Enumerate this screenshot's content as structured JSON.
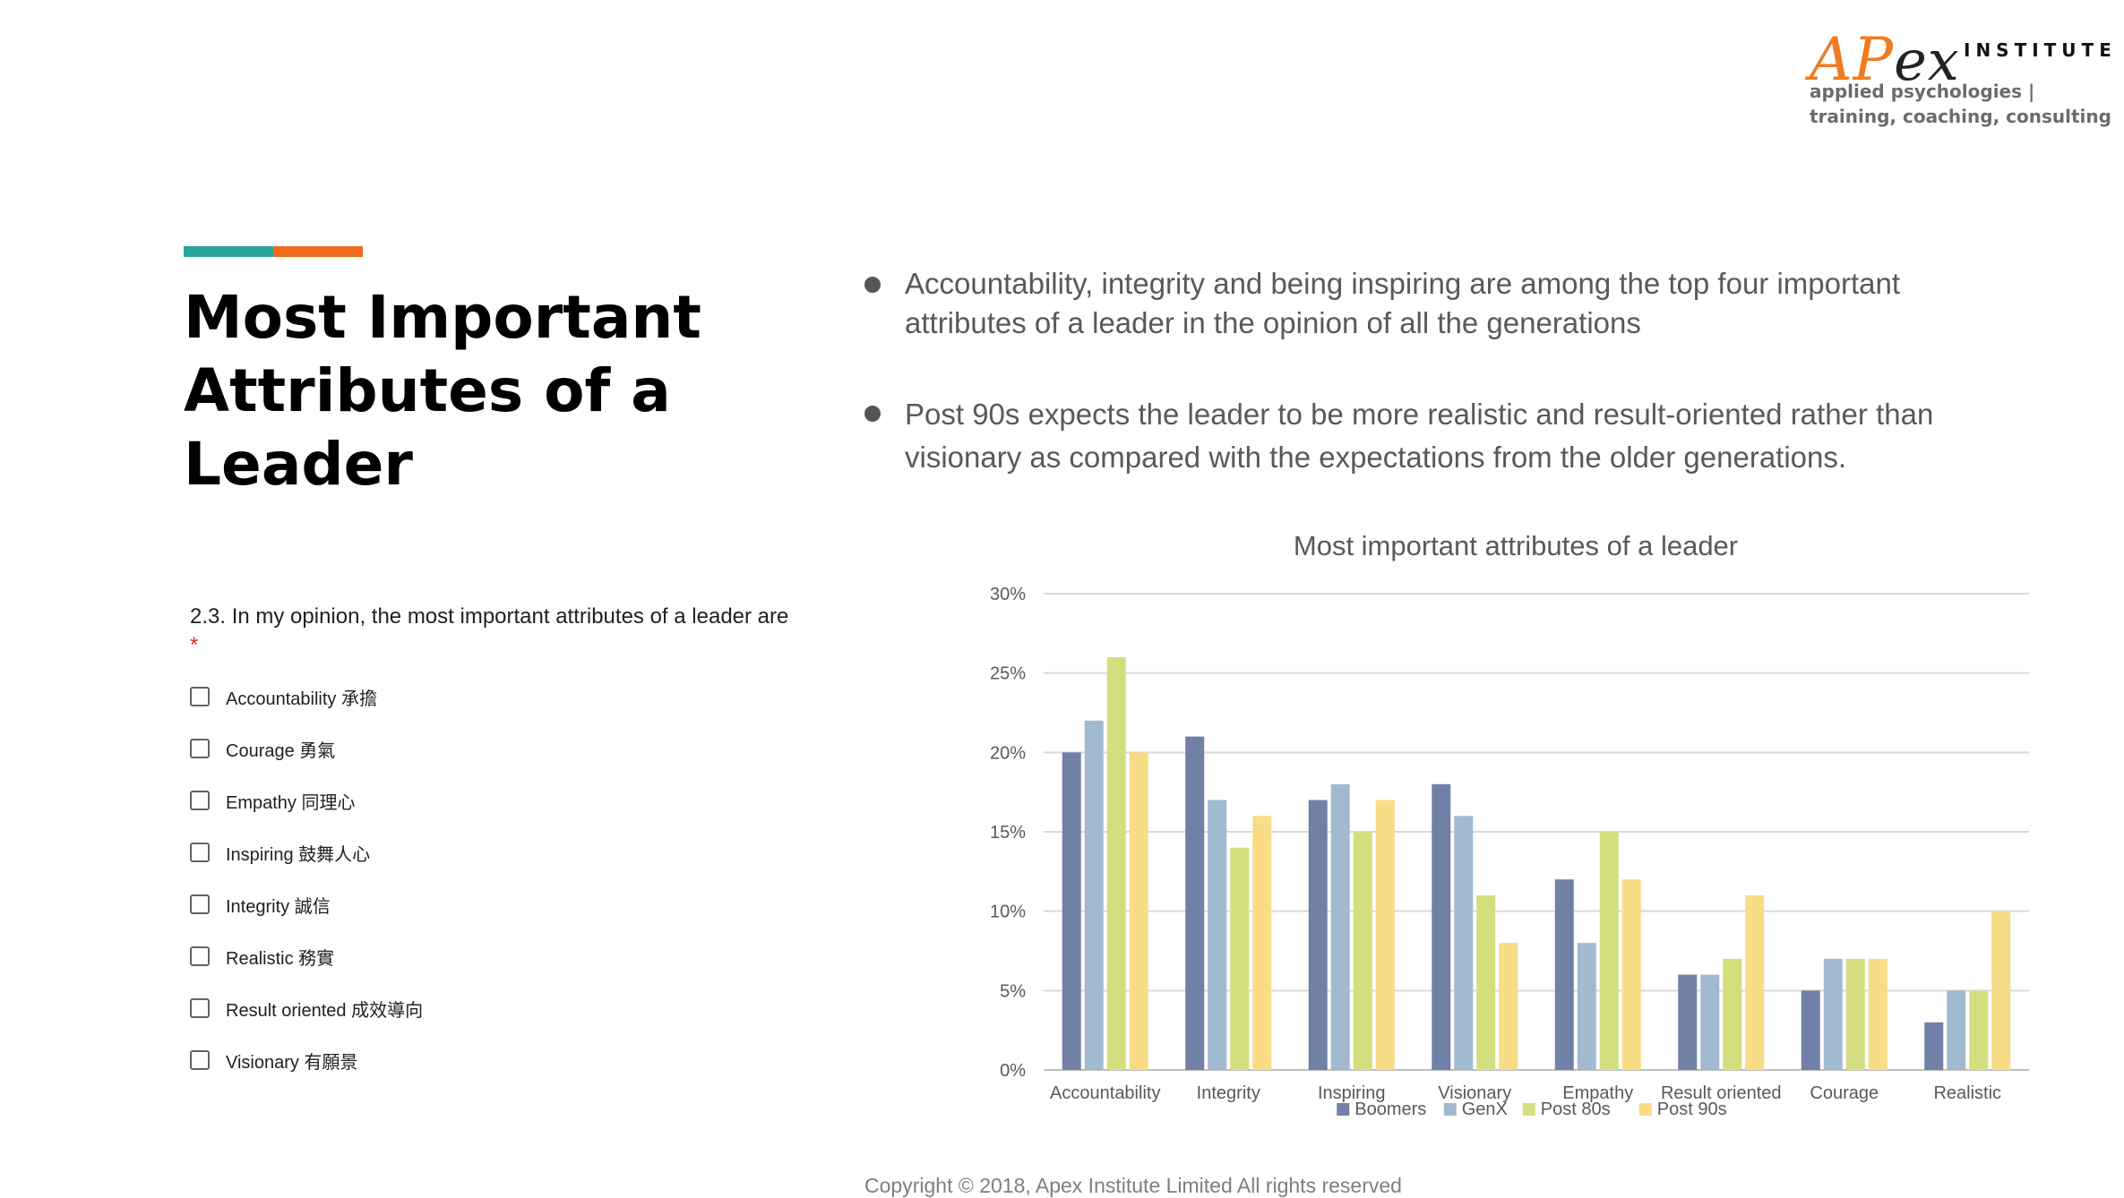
{
  "logo": {
    "mark_main": "AP",
    "mark_sub": "ex",
    "institute": "INSTITUTE",
    "tagline_1": "applied psychologies |",
    "tagline_2": "training, coaching, consulting",
    "accent_color": "#f07b22"
  },
  "title": {
    "text": "Most Important Attributes of a Leader",
    "accent_colors": [
      "#26a69a",
      "#ef6c1e"
    ]
  },
  "form": {
    "question": "2.3. In my opinion, the most important attributes of a leader are",
    "required_mark": "*",
    "options": [
      "Accountability 承擔",
      "Courage 勇氣",
      "Empathy 同理心",
      "Inspiring 鼓舞人心",
      "Integrity 誠信",
      "Realistic 務實",
      "Result oriented 成效導向",
      "Visionary 有願景"
    ]
  },
  "bullets": [
    "Accountability, integrity and being inspiring are among the top four important attributes of a leader in the opinion of all the generations",
    "Post 90s expects the leader to be more realistic and result-oriented rather than visionary as compared with the expectations from the older generations."
  ],
  "chart_data": {
    "type": "bar",
    "title": "Most important attributes of a leader",
    "categories": [
      "Accountability",
      "Integrity",
      "Inspiring",
      "Visionary",
      "Empathy",
      "Result oriented",
      "Courage",
      "Realistic"
    ],
    "series": [
      {
        "name": "Boomers",
        "color": "#7180a6",
        "values": [
          20,
          21,
          17,
          18,
          12,
          6,
          5,
          3
        ]
      },
      {
        "name": "GenX",
        "color": "#a2bad0",
        "values": [
          22,
          17,
          18,
          16,
          8,
          6,
          7,
          5
        ]
      },
      {
        "name": "Post 80s",
        "color": "#d4de7e",
        "values": [
          26,
          14,
          15,
          11,
          15,
          7,
          7,
          5
        ]
      },
      {
        "name": "Post 90s",
        "color": "#f9dc86",
        "values": [
          20,
          16,
          17,
          8,
          12,
          11,
          7,
          10
        ]
      }
    ],
    "y_ticks": [
      "0%",
      "5%",
      "10%",
      "15%",
      "20%",
      "25%",
      "30%"
    ],
    "ylim": [
      0,
      30
    ],
    "grid": true,
    "legend_position": "bottom"
  },
  "footer": "Copyright © 2018, Apex Institute Limited All rights reserved"
}
